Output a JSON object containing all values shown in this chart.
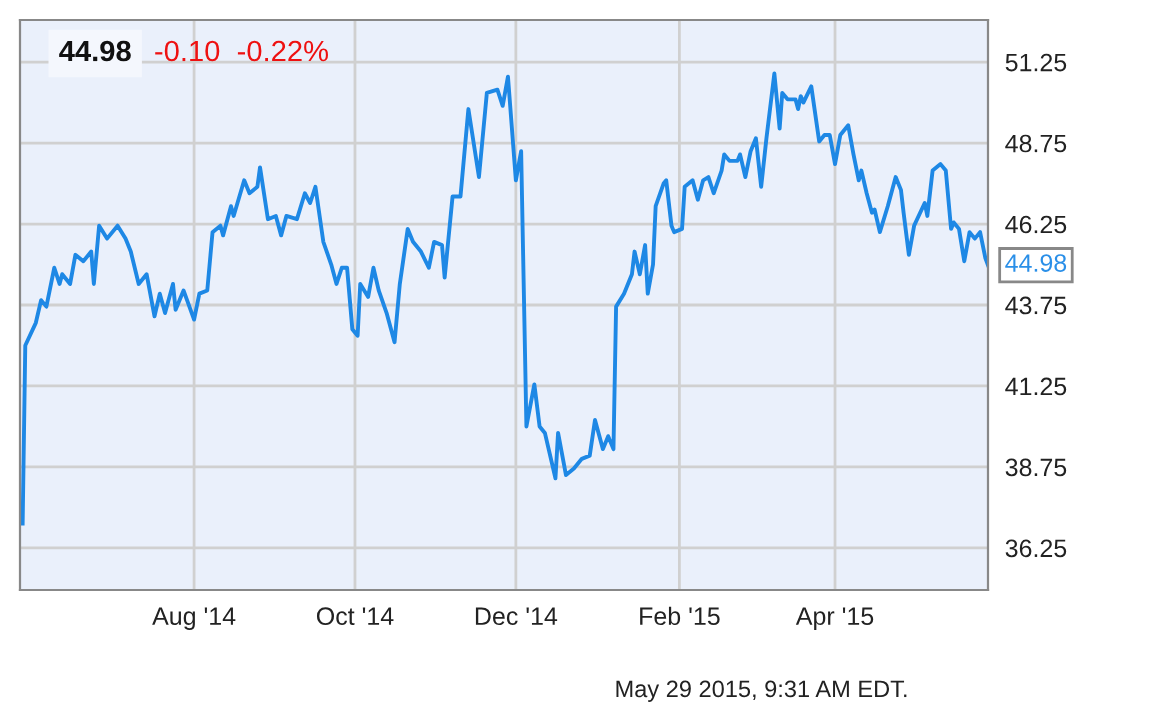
{
  "chart_data": {
    "type": "line",
    "title": "44.98",
    "subtitle": "-0.10  -0.22%",
    "annotations": [
      {
        "text": "44.98",
        "x": "2015-05-29",
        "y": 44.98
      },
      "May 29 2015, 9:31 AM EDT."
    ],
    "x": [
      "2014-05-28",
      "2014-05-29",
      "2014-06-02",
      "2014-06-04",
      "2014-06-06",
      "2014-06-09",
      "2014-06-11",
      "2014-06-12",
      "2014-06-15",
      "2014-06-17",
      "2014-06-20",
      "2014-06-23",
      "2014-06-24",
      "2014-06-26",
      "2014-06-29",
      "2014-07-03",
      "2014-07-06",
      "2014-07-08",
      "2014-07-11",
      "2014-07-14",
      "2014-07-17",
      "2014-07-19",
      "2014-07-21",
      "2014-07-24",
      "2014-07-25",
      "2014-07-28",
      "2014-08-01",
      "2014-08-03",
      "2014-08-06",
      "2014-08-08",
      "2014-08-11",
      "2014-08-12",
      "2014-08-15",
      "2014-08-16",
      "2014-08-20",
      "2014-08-22",
      "2014-08-25",
      "2014-08-26",
      "2014-08-29",
      "2014-09-01",
      "2014-09-03",
      "2014-09-05",
      "2014-09-09",
      "2014-09-12",
      "2014-09-14",
      "2014-09-16",
      "2014-09-19",
      "2014-09-22",
      "2014-09-24",
      "2014-09-26",
      "2014-09-28",
      "2014-09-30",
      "2014-10-02",
      "2014-10-03",
      "2014-10-06",
      "2014-10-08",
      "2014-10-10",
      "2014-10-13",
      "2014-10-16",
      "2014-10-18",
      "2014-10-21",
      "2014-10-23",
      "2014-10-26",
      "2014-10-29",
      "2014-10-31",
      "2014-11-03",
      "2014-11-04",
      "2014-11-07",
      "2014-11-10",
      "2014-11-13",
      "2014-11-17",
      "2014-11-20",
      "2014-11-24",
      "2014-11-26",
      "2014-11-28",
      "2014-12-01",
      "2014-12-03",
      "2014-12-05",
      "2014-12-08",
      "2014-12-10",
      "2014-12-12",
      "2014-12-16",
      "2014-12-17",
      "2014-12-20",
      "2014-12-23",
      "2014-12-26",
      "2014-12-29",
      "2014-12-31",
      "2015-01-03",
      "2015-01-05",
      "2015-01-07",
      "2015-01-08",
      "2015-01-11",
      "2015-01-14",
      "2015-01-15",
      "2015-01-17",
      "2015-01-19",
      "2015-01-20",
      "2015-01-22",
      "2015-01-23",
      "2015-01-26",
      "2015-01-27",
      "2015-01-29",
      "2015-01-30",
      "2015-02-02",
      "2015-02-03",
      "2015-02-06",
      "2015-02-08",
      "2015-02-10",
      "2015-02-12",
      "2015-02-14",
      "2015-02-17",
      "2015-02-18",
      "2015-02-20",
      "2015-02-23",
      "2015-02-24",
      "2015-02-26",
      "2015-02-28",
      "2015-03-02",
      "2015-03-04",
      "2015-03-06",
      "2015-03-09",
      "2015-03-11",
      "2015-03-12",
      "2015-03-14",
      "2015-03-17",
      "2015-03-18",
      "2015-03-19",
      "2015-03-20",
      "2015-03-23",
      "2015-03-26",
      "2015-03-28",
      "2015-03-30",
      "2015-04-01",
      "2015-04-03",
      "2015-04-06",
      "2015-04-08",
      "2015-04-10",
      "2015-04-11",
      "2015-04-13",
      "2015-04-15",
      "2015-04-16",
      "2015-04-18",
      "2015-04-21",
      "2015-04-24",
      "2015-04-26",
      "2015-04-27",
      "2015-04-29",
      "2015-05-01",
      "2015-05-05",
      "2015-05-06",
      "2015-05-08",
      "2015-05-11",
      "2015-05-13",
      "2015-05-15",
      "2015-05-16",
      "2015-05-18",
      "2015-05-20",
      "2015-05-22",
      "2015-05-24",
      "2015-05-26",
      "2015-05-28",
      "2015-05-29"
    ],
    "series": [
      {
        "color": "#1e88e5",
        "values": [
          37.0,
          42.5,
          43.2,
          43.9,
          43.7,
          44.9,
          44.4,
          44.7,
          44.4,
          45.3,
          45.1,
          45.4,
          44.4,
          46.2,
          45.8,
          46.2,
          45.8,
          45.4,
          44.4,
          44.7,
          43.4,
          44.1,
          43.5,
          44.4,
          43.6,
          44.2,
          43.3,
          44.1,
          44.2,
          46.0,
          46.2,
          45.9,
          46.8,
          46.5,
          47.6,
          47.2,
          47.4,
          48.0,
          46.4,
          46.5,
          45.9,
          46.5,
          46.4,
          47.2,
          46.9,
          47.4,
          45.7,
          45.0,
          44.4,
          44.9,
          44.9,
          43.0,
          42.8,
          44.4,
          44.0,
          44.9,
          44.2,
          43.5,
          42.6,
          44.4,
          46.1,
          45.7,
          45.4,
          44.9,
          45.7,
          45.6,
          44.6,
          47.1,
          47.1,
          49.8,
          47.7,
          50.3,
          50.4,
          49.9,
          50.8,
          47.6,
          48.5,
          40.0,
          41.3,
          40.0,
          39.8,
          38.4,
          39.8,
          38.5,
          38.7,
          39.0,
          39.1,
          40.2,
          39.3,
          39.7,
          39.3,
          43.7,
          44.1,
          44.7,
          45.4,
          44.7,
          45.6,
          44.1,
          45.0,
          46.8,
          47.5,
          47.6,
          46.2,
          46.0,
          46.1,
          47.4,
          47.6,
          47.0,
          47.6,
          47.7,
          47.2,
          47.9,
          48.4,
          48.2,
          48.2,
          48.4,
          47.7,
          48.5,
          48.9,
          47.4,
          48.9,
          50.9,
          49.2,
          50.3,
          50.1,
          50.1,
          49.8,
          50.2,
          50.0,
          50.5,
          48.8,
          49.0,
          49.0,
          48.1,
          49.0,
          49.3,
          48.4,
          47.6,
          47.9,
          47.2,
          46.6,
          46.7,
          46.0,
          46.8,
          47.7,
          47.3,
          46.6,
          45.3,
          46.2,
          46.9,
          46.5,
          47.9,
          48.1,
          47.9,
          46.1,
          46.3,
          46.1,
          45.1,
          46.0,
          45.8,
          46.0,
          45.2,
          44.98
        ]
      }
    ],
    "xlim": [
      "2014-05-27",
      "2015-05-29"
    ],
    "xticks": [
      {
        "value": "2014-08-01",
        "label": "Aug '14"
      },
      {
        "value": "2014-10-01",
        "label": "Oct '14"
      },
      {
        "value": "2014-12-01",
        "label": "Dec '14"
      },
      {
        "value": "2015-02-01",
        "label": "Feb '15"
      },
      {
        "value": "2015-04-01",
        "label": "Apr '15"
      }
    ],
    "ylim": [
      34.95,
      52.55
    ],
    "yticks": [
      36.25,
      38.75,
      41.25,
      43.75,
      46.25,
      48.75,
      51.25
    ],
    "grid": true,
    "marker": "none",
    "line_style": "solid"
  }
}
